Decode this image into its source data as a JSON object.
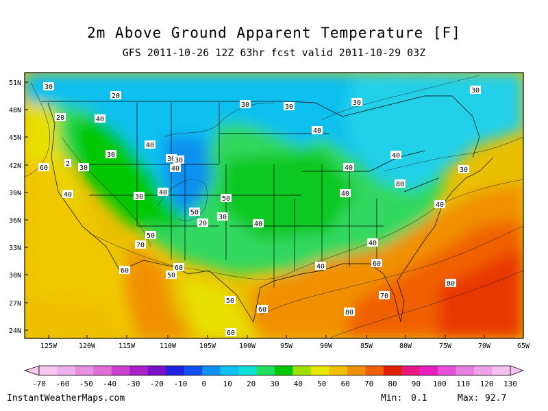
{
  "title": "2m Above Ground Apparent Temperature [F]",
  "subtitle": "GFS 2011-10-26 12Z 63hr fcst valid 2011-10-29 03Z",
  "map": {
    "lat_labels": [
      "51N",
      "48N",
      "45N",
      "42N",
      "39N",
      "36N",
      "33N",
      "30N",
      "27N",
      "24N"
    ],
    "lon_labels": [
      "125W",
      "120W",
      "115W",
      "110W",
      "105W",
      "100W",
      "95W",
      "90W",
      "85W",
      "80W",
      "75W",
      "70W",
      "65W"
    ],
    "contour_labels": [
      "30",
      "20",
      "30",
      "30",
      "30",
      "30",
      "20",
      "40",
      "40",
      "40",
      "30",
      "2",
      "30",
      "30",
      "40",
      "40",
      "30",
      "30",
      "60",
      "40",
      "40",
      "30",
      "50",
      "40",
      "40",
      "40",
      "50",
      "20",
      "30",
      "40",
      "40",
      "50",
      "40",
      "70",
      "60",
      "50",
      "60",
      "60",
      "60",
      "50",
      "60",
      "70",
      "80",
      "80",
      "80"
    ]
  },
  "colorbar": {
    "levels": [
      "-70",
      "-60",
      "-50",
      "-40",
      "-30",
      "-20",
      "-10",
      "0",
      "10",
      "20",
      "30",
      "40",
      "50",
      "60",
      "70",
      "80",
      "90",
      "100",
      "110",
      "120",
      "130"
    ],
    "colors": [
      "#f6c8f0",
      "#eeb0ea",
      "#e890e0",
      "#e070d8",
      "#cc40d0",
      "#a820c8",
      "#7a10c8",
      "#2020e0",
      "#1050f0",
      "#1090f0",
      "#10c0f0",
      "#10e0d8",
      "#20e060",
      "#00c800",
      "#a0e000",
      "#e8e800",
      "#f0c000",
      "#f09000",
      "#f06000",
      "#e02000",
      "#e81880",
      "#e820c0",
      "#e850d8",
      "#e880e0",
      "#f0a0e8",
      "#f4c0ee"
    ]
  },
  "footer": {
    "site": "InstantWeatherMaps.com",
    "min_label": "Min:",
    "min_value": "0.1",
    "max_label": "Max:",
    "max_value": "92.7"
  }
}
